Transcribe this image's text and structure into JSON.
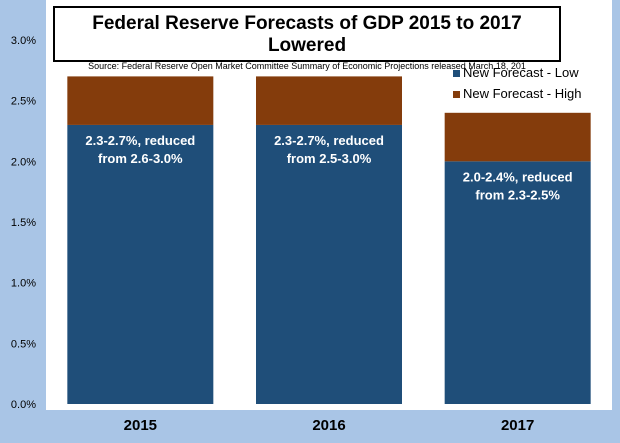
{
  "chart_data": {
    "type": "bar",
    "stacked": true,
    "title": "Federal Reserve Forecasts of GDP 2015 to 2017 Lowered",
    "subtitle": "Source: Federal Reserve Open Market Committee Summary of Economic Projections released March 18, 201",
    "categories": [
      "2015",
      "2016",
      "2017"
    ],
    "series": [
      {
        "name": "New Forecast - Low",
        "values": [
          2.3,
          2.3,
          2.0
        ],
        "color": "#1f4e79"
      },
      {
        "name": "New Forecast - High",
        "values": [
          0.4,
          0.4,
          0.4
        ],
        "color": "#843c0c"
      }
    ],
    "bar_labels": [
      [
        "2.3-2.7%, reduced",
        "from 2.6-3.0%"
      ],
      [
        "2.3-2.7%, reduced",
        "from 2.5-3.0%"
      ],
      [
        "2.0-2.4%, reduced",
        "from 2.3-2.5%"
      ]
    ],
    "ylim": [
      0,
      3.0
    ],
    "yticks": [
      "0.0%",
      "0.5%",
      "1.0%",
      "1.5%",
      "2.0%",
      "2.5%",
      "3.0%"
    ],
    "ytick_values": [
      0,
      0.5,
      1.0,
      1.5,
      2.0,
      2.5,
      3.0
    ],
    "grid": false,
    "legend": "top-right",
    "xlabel": "",
    "ylabel": ""
  }
}
